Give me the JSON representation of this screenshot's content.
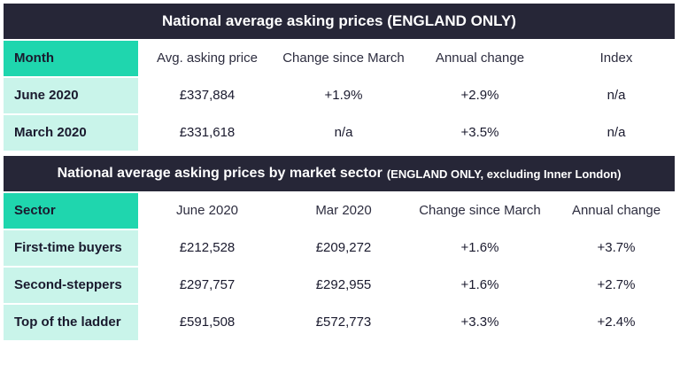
{
  "table1": {
    "title": "National average asking prices (ENGLAND ONLY)",
    "headers": [
      "Month",
      "Avg. asking price",
      "Change since March",
      "Annual change",
      "Index"
    ],
    "rows": [
      [
        "June 2020",
        "£337,884",
        "+1.9%",
        "+2.9%",
        "n/a"
      ],
      [
        "March 2020",
        "£331,618",
        "n/a",
        "+3.5%",
        "n/a"
      ]
    ]
  },
  "table2": {
    "title": "National average asking prices by market sector",
    "subtitle": "(ENGLAND ONLY, excluding Inner London)",
    "headers": [
      "Sector",
      "June 2020",
      "Mar 2020",
      "Change since March",
      "Annual change"
    ],
    "rows": [
      [
        "First-time buyers",
        "£212,528",
        "£209,272",
        "+1.6%",
        "+3.7%"
      ],
      [
        "Second-steppers",
        "£297,757",
        "£292,955",
        "+1.6%",
        "+2.7%"
      ],
      [
        "Top of the ladder",
        "£591,508",
        "£572,773",
        "+3.3%",
        "+2.4%"
      ]
    ]
  },
  "colors": {
    "title_bg": "#262637",
    "key_header_bg": "#1fd6ae",
    "row_label_bg": "#c9f4ea"
  }
}
